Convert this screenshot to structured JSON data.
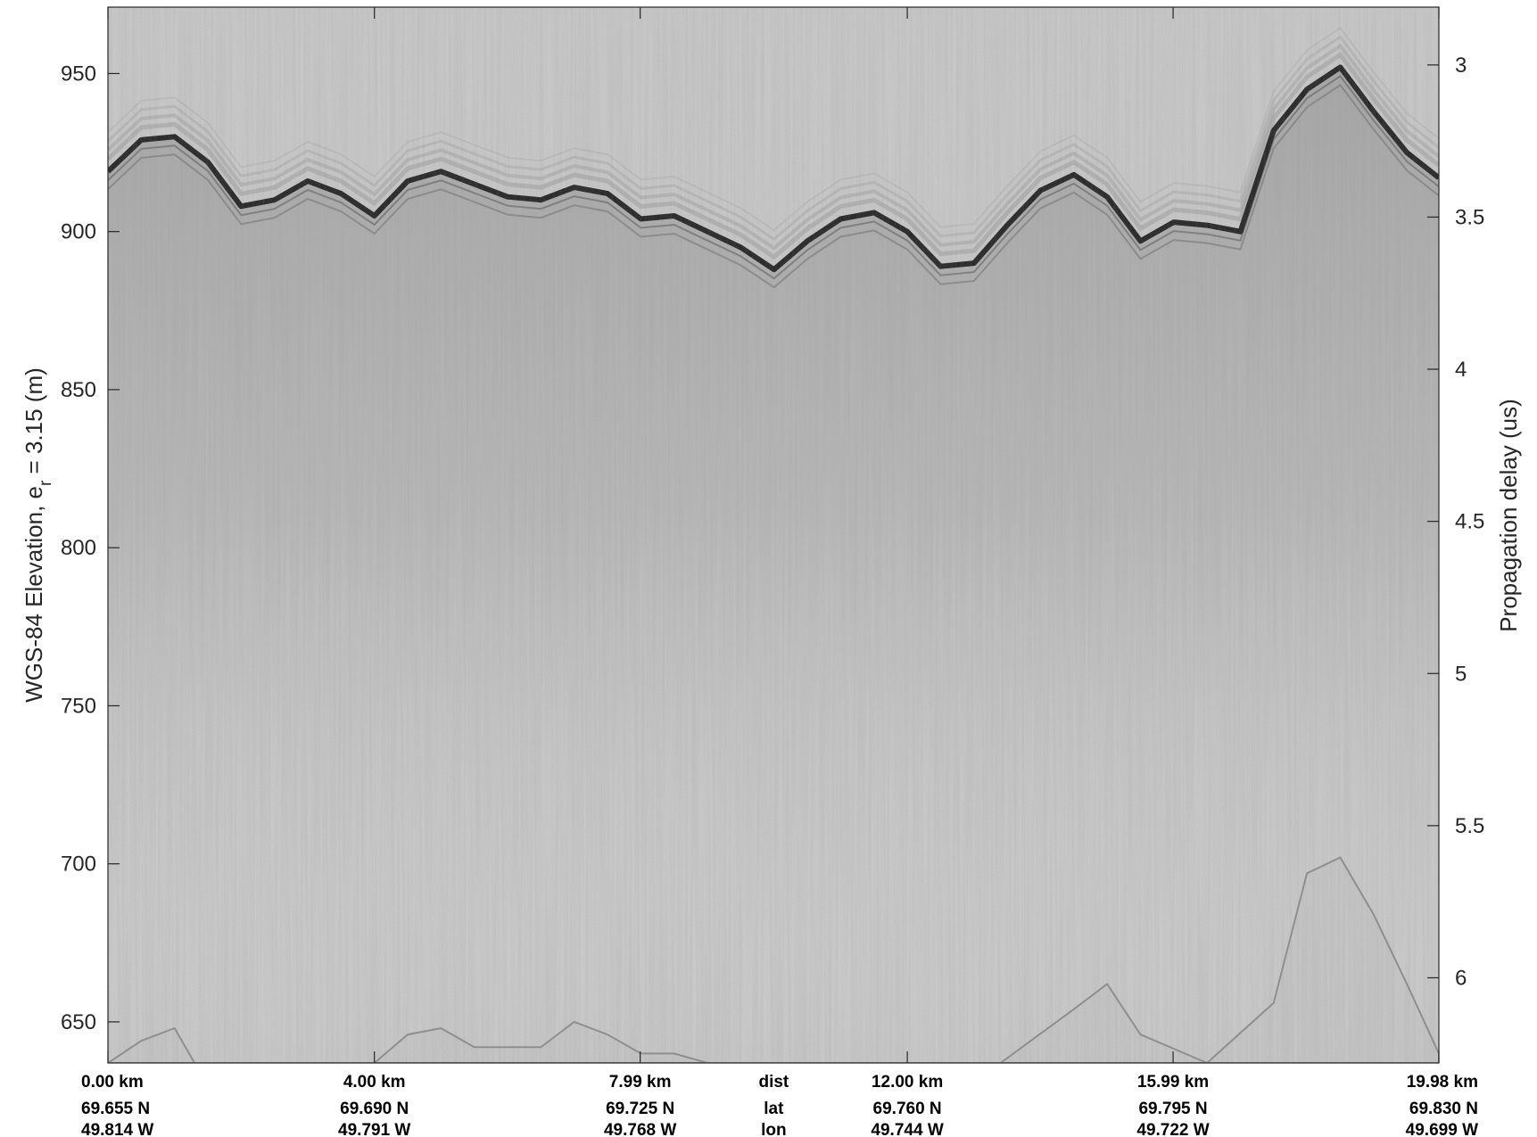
{
  "chart_data": {
    "type": "heatmap",
    "colormap": "grayscale",
    "title": "",
    "xlabel": "",
    "ylabel": "WGS-84 Elevation, e",
    "ylabel_subscript": "r",
    "ylabel_suffix": " = 3.15 (m)",
    "ylabel_right": "Propagation delay (us)",
    "ylim": [
      637,
      971
    ],
    "y_ticks": [
      650,
      700,
      750,
      800,
      850,
      900,
      950
    ],
    "y_ticks_right": {
      "labels": [
        "3",
        "3.5",
        "4",
        "4.5",
        "5",
        "5.5",
        "6"
      ],
      "values": [
        3,
        3.5,
        4,
        4.5,
        5,
        5.5,
        6
      ]
    },
    "y_right_range": [
      2.81,
      6.28
    ],
    "grid": false,
    "surface_elevation": {
      "x_km": [
        0,
        0.5,
        1.0,
        1.5,
        2.0,
        2.5,
        3.0,
        3.5,
        4.0,
        4.5,
        5.0,
        5.5,
        6.0,
        6.5,
        7.0,
        7.5,
        8.0,
        8.5,
        9.0,
        9.5,
        10.0,
        10.5,
        11.0,
        11.5,
        12.0,
        12.5,
        13.0,
        13.5,
        14.0,
        14.5,
        15.0,
        15.5,
        16.0,
        16.5,
        17.0,
        17.5,
        18.0,
        18.5,
        19.0,
        19.5,
        19.98
      ],
      "elev_m": [
        919,
        929,
        930,
        922,
        908,
        910,
        916,
        912,
        905,
        916,
        919,
        915,
        911,
        910,
        914,
        912,
        904,
        905,
        900,
        895,
        888,
        897,
        904,
        906,
        900,
        889,
        890,
        902,
        913,
        918,
        911,
        897,
        903,
        902,
        900,
        932,
        945,
        952,
        938,
        925,
        917
      ]
    },
    "bed_elevation": {
      "x_km": [
        0,
        0.5,
        1.0,
        1.3,
        4.0,
        4.5,
        5.0,
        5.5,
        6.5,
        7.0,
        7.5,
        8.0,
        8.5,
        9.0,
        11.5,
        12.5,
        13.4,
        14.5,
        15.0,
        15.5,
        16.5,
        17.5,
        18.0,
        18.5,
        19.0,
        19.5,
        19.98
      ],
      "elev_m": [
        637,
        644,
        648,
        637,
        637,
        646,
        648,
        642,
        642,
        650,
        646,
        640,
        640,
        637,
        637,
        637,
        637,
        654,
        662,
        646,
        637,
        656,
        697,
        702,
        684,
        662,
        640
      ]
    },
    "x_footer": {
      "row_labels": [
        "dist",
        "lat",
        "lon"
      ],
      "columns": [
        {
          "dist": "0.00 km",
          "lat": "69.655 N",
          "lon": "49.814 W"
        },
        {
          "dist": "4.00 km",
          "lat": "69.690 N",
          "lon": "49.791 W"
        },
        {
          "dist": "7.99 km",
          "lat": "69.725 N",
          "lon": "49.768 W"
        },
        {
          "dist": "12.00 km",
          "lat": "69.760 N",
          "lon": "49.744 W"
        },
        {
          "dist": "15.99 km",
          "lat": "69.795 N",
          "lon": "49.722 W"
        },
        {
          "dist": "19.98 km",
          "lat": "69.830 N",
          "lon": "49.699 W"
        }
      ],
      "column_km": [
        0,
        4.0,
        7.99,
        12.0,
        15.99,
        19.98
      ]
    }
  }
}
